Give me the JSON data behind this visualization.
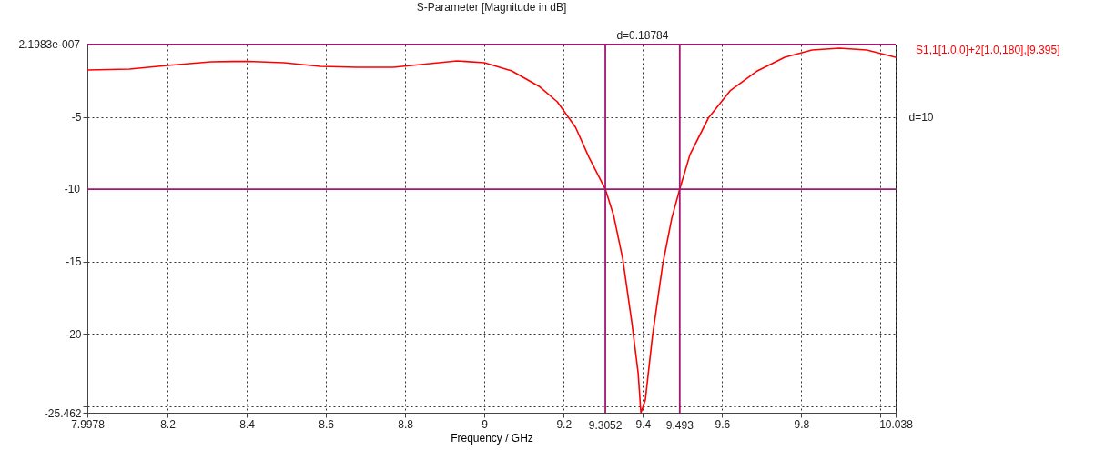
{
  "chart_data": {
    "type": "line",
    "title": "S-Parameter [Magnitude in dB]",
    "xlabel": "Frequency / GHz",
    "x": [
      7.9978,
      8.104,
      8.2,
      8.31,
      8.402,
      8.494,
      8.586,
      8.678,
      8.77,
      8.839,
      8.931,
      9.0,
      9.069,
      9.138,
      9.184,
      9.23,
      9.264,
      9.3052,
      9.326,
      9.349,
      9.372,
      9.388,
      9.395,
      9.406,
      9.424,
      9.45,
      9.473,
      9.493,
      9.519,
      9.565,
      9.62,
      9.689,
      9.758,
      9.827,
      9.896,
      9.965,
      10.038
    ],
    "series": [
      {
        "name": "S1,1[1.0,0]+2[1.0,180],[9.395]",
        "color": "#ff0000",
        "values": [
          -1.76,
          -1.7,
          -1.45,
          -1.19,
          -1.16,
          -1.26,
          -1.51,
          -1.57,
          -1.57,
          -1.38,
          -1.13,
          -1.26,
          -1.82,
          -2.89,
          -3.96,
          -5.72,
          -7.8,
          -10,
          -11.8,
          -14.8,
          -19.2,
          -22.7,
          -25.46,
          -24.6,
          -20.2,
          -15.2,
          -12.0,
          -10,
          -7.6,
          -5.1,
          -3.2,
          -1.82,
          -0.88,
          -0.38,
          -0.25,
          -0.38,
          -0.88
        ]
      }
    ],
    "xlim": [
      7.9978,
      10.038
    ],
    "xticks": [
      7.9978,
      8.2,
      8.4,
      8.6,
      8.8,
      9,
      9.2,
      9.4,
      9.6,
      9.8,
      {
        "value": 10,
        "label": null
      },
      10.038
    ],
    "ylim": [
      -25.462,
      2.1983e-07
    ],
    "yticks": [
      -5,
      -15,
      -20,
      {
        "value": -25,
        "label": null
      },
      -25.462
    ],
    "ref_lines": [
      {
        "axis": "x",
        "value": 9.3052,
        "label": "9.3052",
        "color": "#a01870"
      },
      {
        "axis": "x",
        "value": 9.493,
        "label": "9.493",
        "color": "#a01870"
      },
      {
        "axis": "y",
        "value": -10,
        "label": "-10",
        "color": "#a01870"
      },
      {
        "axis": "y",
        "value": 2.1983e-07,
        "label": "2.1983e-007",
        "color": "#a01870"
      }
    ],
    "annotations": [
      "d=0.18784",
      "d=10"
    ],
    "grid": true,
    "legend": "right",
    "line_style": "solid",
    "marker": "none"
  }
}
